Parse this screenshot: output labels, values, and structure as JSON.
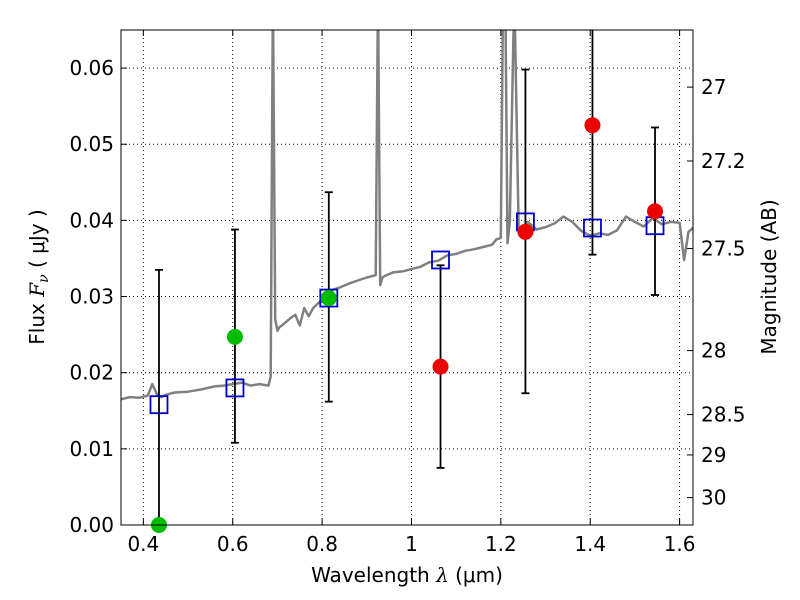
{
  "chart_data": {
    "type": "scatter",
    "xlabel_prefix": "Wavelength ",
    "xlabel_lambda": "λ",
    "xlabel_suffix": " (μm)",
    "ylabel_prefix": "Flux ",
    "ylabel_symbol": "F",
    "ylabel_sub": "ν",
    "ylabel_suffix": " ( μJy )",
    "y2label": "Magnitude (AB)",
    "xlim": [
      0.35,
      1.63
    ],
    "ylim": [
      0.0,
      0.065
    ],
    "grid": true,
    "x_ticks": [
      0.4,
      0.6,
      0.8,
      1.0,
      1.2,
      1.4,
      1.6
    ],
    "x_tick_labels": [
      "0.4",
      "0.6",
      "0.8",
      "1",
      "1.2",
      "1.4",
      "1.6"
    ],
    "y_ticks": [
      0.0,
      0.01,
      0.02,
      0.03,
      0.04,
      0.05,
      0.06
    ],
    "y_tick_labels": [
      "0.00",
      "0.01",
      "0.02",
      "0.03",
      "0.04",
      "0.05",
      "0.06"
    ],
    "y2_ticks": [
      {
        "label": "27",
        "flux": 0.0575
      },
      {
        "label": "27.2",
        "flux": 0.0478
      },
      {
        "label": "27.5",
        "flux": 0.0363
      },
      {
        "label": "28",
        "flux": 0.0229
      },
      {
        "label": "28.5",
        "flux": 0.0145
      },
      {
        "label": "29",
        "flux": 0.0092
      },
      {
        "label": "30",
        "flux": 0.0036
      }
    ],
    "colors": {
      "model": "#808080",
      "model_photometry": "#0000cc",
      "green": "#00bb00",
      "red": "#ee0000",
      "errorbar": "#000000",
      "grid": "#000000"
    },
    "series": [
      {
        "name": "model spectrum",
        "kind": "line",
        "x": [
          0.35,
          0.37,
          0.39,
          0.41,
          0.42,
          0.43,
          0.44,
          0.45,
          0.47,
          0.5,
          0.53,
          0.56,
          0.58,
          0.6,
          0.62,
          0.64,
          0.66,
          0.67,
          0.68,
          0.685,
          0.69,
          0.695,
          0.7,
          0.705,
          0.71,
          0.72,
          0.73,
          0.74,
          0.75,
          0.76,
          0.77,
          0.78,
          0.8,
          0.82,
          0.84,
          0.86,
          0.88,
          0.9,
          0.92,
          0.925,
          0.93,
          0.935,
          0.94,
          0.96,
          0.98,
          1.0,
          1.02,
          1.04,
          1.06,
          1.08,
          1.1,
          1.12,
          1.14,
          1.16,
          1.18,
          1.19,
          1.2,
          1.205,
          1.21,
          1.215,
          1.22,
          1.23,
          1.24,
          1.25,
          1.26,
          1.28,
          1.3,
          1.32,
          1.34,
          1.36,
          1.38,
          1.4,
          1.42,
          1.44,
          1.46,
          1.48,
          1.5,
          1.52,
          1.54,
          1.56,
          1.58,
          1.6,
          1.61,
          1.62,
          1.63
        ],
        "y": [
          0.0165,
          0.0168,
          0.0167,
          0.017,
          0.0185,
          0.0172,
          0.0168,
          0.0171,
          0.0174,
          0.0175,
          0.0178,
          0.0182,
          0.0183,
          0.0185,
          0.0187,
          0.0183,
          0.0185,
          0.0184,
          0.0183,
          0.0195,
          0.07,
          0.027,
          0.0255,
          0.026,
          0.0262,
          0.0267,
          0.0272,
          0.0276,
          0.0262,
          0.0285,
          0.0274,
          0.0285,
          0.0296,
          0.0308,
          0.0312,
          0.0317,
          0.0321,
          0.0325,
          0.0328,
          0.07,
          0.0315,
          0.0325,
          0.0327,
          0.0332,
          0.0333,
          0.0336,
          0.0339,
          0.0345,
          0.0347,
          0.0354,
          0.0356,
          0.036,
          0.0362,
          0.0365,
          0.0368,
          0.0375,
          0.0377,
          0.07,
          0.07,
          0.037,
          0.0398,
          0.07,
          0.0385,
          0.0392,
          0.0398,
          0.0388,
          0.0391,
          0.0396,
          0.0405,
          0.0398,
          0.0386,
          0.038,
          0.0383,
          0.0381,
          0.0387,
          0.0405,
          0.0398,
          0.0392,
          0.0403,
          0.0395,
          0.0398,
          0.0397,
          0.0348,
          0.0385,
          0.039
        ]
      },
      {
        "name": "model photometry",
        "kind": "open-square",
        "x": [
          0.435,
          0.605,
          0.815,
          1.065,
          1.255,
          1.405,
          1.545
        ],
        "y": [
          0.0158,
          0.018,
          0.0298,
          0.0348,
          0.0398,
          0.039,
          0.0393
        ]
      },
      {
        "name": "observed (green)",
        "kind": "filled-circle",
        "x": [
          0.435,
          0.605,
          0.815
        ],
        "y": [
          0.0,
          0.0247,
          0.0298
        ],
        "yerr_low": [
          0.0,
          0.0139,
          0.0136
        ],
        "yerr_high": [
          0.0335,
          0.0141,
          0.0139
        ]
      },
      {
        "name": "observed (red)",
        "kind": "filled-circle",
        "x": [
          1.065,
          1.255,
          1.405,
          1.545
        ],
        "y": [
          0.0208,
          0.0385,
          0.0525,
          0.0412
        ],
        "yerr_low": [
          0.0133,
          0.0212,
          0.017,
          0.011
        ],
        "yerr_high": [
          0.0133,
          0.0213,
          0.0135,
          0.011
        ]
      }
    ]
  }
}
